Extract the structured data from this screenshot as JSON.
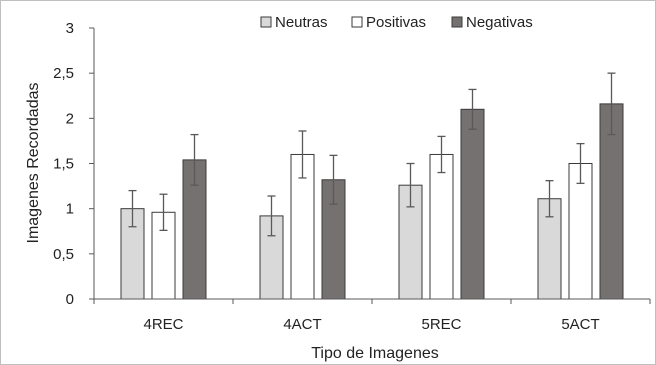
{
  "chart_data": {
    "type": "bar",
    "xlabel": "Tipo de Imagenes",
    "ylabel": "Imagenes Recordadas",
    "ylim": [
      0,
      3
    ],
    "yticks": [
      "0",
      "0,5",
      "1",
      "1,5",
      "2",
      "2,5",
      "3"
    ],
    "categories": [
      "4REC",
      "4ACT",
      "5REC",
      "5ACT"
    ],
    "series": [
      {
        "name": "Neutras",
        "color": "#d9d9d9",
        "values": [
          1.0,
          0.92,
          1.26,
          1.11
        ],
        "errors": [
          0.2,
          0.22,
          0.24,
          0.2
        ]
      },
      {
        "name": "Positivas",
        "color": "#ffffff",
        "values": [
          0.96,
          1.6,
          1.6,
          1.5
        ],
        "errors": [
          0.2,
          0.26,
          0.2,
          0.22
        ]
      },
      {
        "name": "Negativas",
        "color": "#767171",
        "values": [
          1.54,
          1.32,
          2.1,
          2.16
        ],
        "errors": [
          0.28,
          0.27,
          0.22,
          0.34
        ]
      }
    ],
    "legend_position": "top",
    "grid": false
  }
}
